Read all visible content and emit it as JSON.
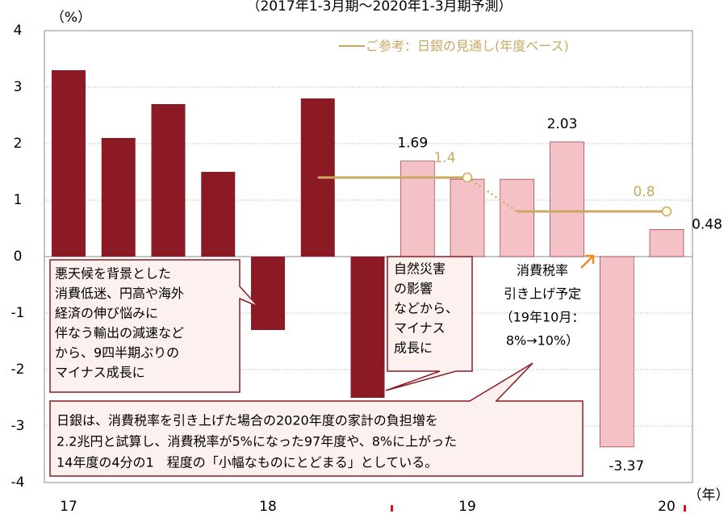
{
  "chart_data": {
    "type": "bar",
    "title": "（2017年1-3月期～2020年1-3月期予測）",
    "y_axis_label": "（%）",
    "x_axis_label": "（年）",
    "categories": [
      "17",
      null,
      null,
      null,
      "18",
      null,
      null,
      null,
      "19",
      null,
      null,
      null,
      "20"
    ],
    "values": [
      3.3,
      2.1,
      2.7,
      1.5,
      -1.3,
      2.8,
      -2.5,
      1.69,
      1.37,
      1.37,
      2.03,
      -3.37,
      0.48
    ],
    "value_labels": [
      null,
      null,
      null,
      null,
      null,
      null,
      null,
      "1.69",
      null,
      null,
      "2.03",
      "-3.37",
      "0.48"
    ],
    "bar_colors": [
      "#8b1a24",
      "#8b1a24",
      "#8b1a24",
      "#8b1a24",
      "#8b1a24",
      "#8b1a24",
      "#8b1a24",
      "#f4c2c6",
      "#f4c2c6",
      "#f4c2c6",
      "#f4c2c6",
      "#f4c2c6",
      "#f4c2c6"
    ],
    "line_series": {
      "name": "ご参考：日銀の見通し(年度ベース)",
      "color": "#c9a862",
      "values": [
        null,
        null,
        null,
        null,
        null,
        1.4,
        1.4,
        1.4,
        1.4,
        0.8,
        0.8,
        0.8,
        0.8
      ],
      "value_labels": [
        null,
        null,
        null,
        null,
        null,
        null,
        null,
        null,
        "1.4",
        null,
        null,
        null,
        "0.8"
      ]
    },
    "ylim": [
      -4,
      4
    ],
    "yticks": [
      -4,
      -3,
      -2,
      -1,
      0,
      1,
      2,
      3,
      4
    ],
    "grid": true,
    "annotations": [
      {
        "lines": [
          "悪天候を背景とした",
          "消費低迷、円高や海外",
          "経済の伸び悩みに",
          "伴なう輸出の減速など",
          "から、9四半期ぶりの",
          "マイナス成長に"
        ]
      },
      {
        "lines": [
          "自然災害",
          "の影響",
          "などから、",
          "マイナス",
          "成長に"
        ]
      },
      {
        "lines": [
          "日銀は、消費税率を引き上げた場合の2020年度の家計の負担増を",
          "2.2兆円と試算し、消費税率が5%になった97年度や、8%に上がった",
          "14年度の4分の1　程度の「小幅なものにとどまる」としている。"
        ]
      },
      {
        "lines": [
          "消費税率",
          "引き上げ予定",
          "（19年10月：",
          "8%→10%）"
        ]
      }
    ]
  }
}
